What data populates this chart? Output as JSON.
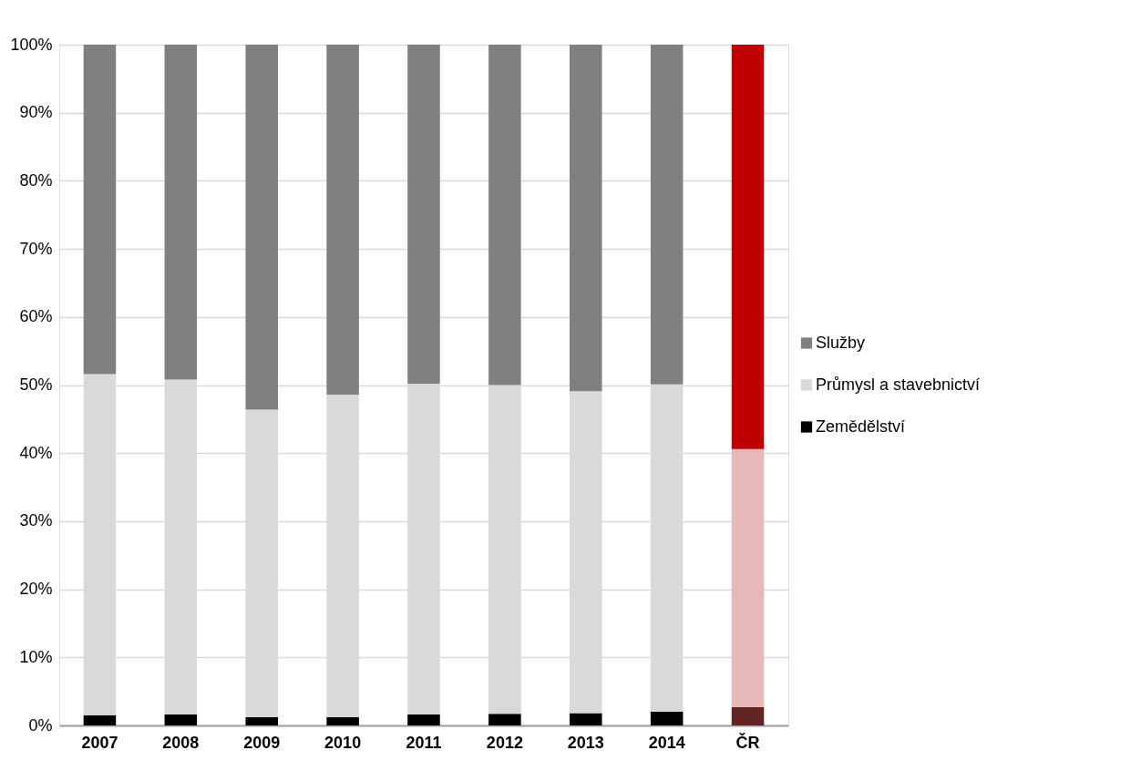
{
  "chart_data": {
    "type": "bar",
    "stacked": true,
    "categories": [
      "2007",
      "2008",
      "2009",
      "2010",
      "2011",
      "2012",
      "2013",
      "2014",
      "ČR"
    ],
    "series": [
      {
        "name": "Zemědělství",
        "color": "#000000",
        "colors": [
          "#000000",
          "#000000",
          "#000000",
          "#000000",
          "#000000",
          "#000000",
          "#000000",
          "#000000",
          "#632523"
        ],
        "values": [
          1.5,
          1.6,
          1.2,
          1.2,
          1.6,
          1.7,
          1.8,
          2.0,
          2.7
        ]
      },
      {
        "name": "Průmysl a stavebnictví",
        "color": "#d9d9d9",
        "colors": [
          "#d9d9d9",
          "#d9d9d9",
          "#d9d9d9",
          "#d9d9d9",
          "#d9d9d9",
          "#d9d9d9",
          "#d9d9d9",
          "#d9d9d9",
          "#e6b9b8"
        ],
        "values": [
          50.1,
          49.2,
          45.2,
          47.4,
          48.6,
          48.3,
          47.3,
          48.1,
          37.9
        ]
      },
      {
        "name": "Služby",
        "color": "#808080",
        "colors": [
          "#808080",
          "#808080",
          "#808080",
          "#808080",
          "#808080",
          "#808080",
          "#808080",
          "#808080",
          "#c00000"
        ],
        "values": [
          48.4,
          49.2,
          53.6,
          51.4,
          49.8,
          50.0,
          50.9,
          49.9,
          59.4
        ]
      }
    ],
    "ylim": [
      0,
      100
    ],
    "yticks": [
      {
        "value": 0,
        "label": "0%"
      },
      {
        "value": 10,
        "label": "10%"
      },
      {
        "value": 20,
        "label": "20%"
      },
      {
        "value": 30,
        "label": "30%"
      },
      {
        "value": 40,
        "label": "40%"
      },
      {
        "value": 50,
        "label": "50%"
      },
      {
        "value": 60,
        "label": "60%"
      },
      {
        "value": 70,
        "label": "70%"
      },
      {
        "value": 80,
        "label": "80%"
      },
      {
        "value": 90,
        "label": "90%"
      },
      {
        "value": 100,
        "label": "100%"
      }
    ],
    "grid": "y",
    "legend": "right"
  }
}
